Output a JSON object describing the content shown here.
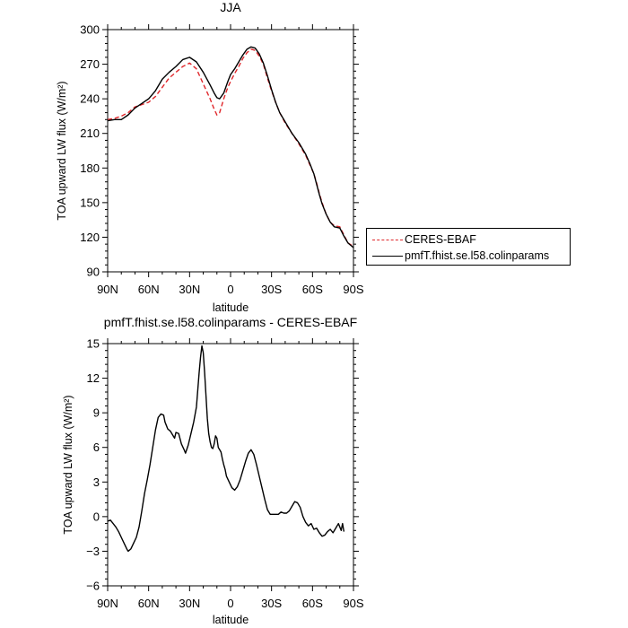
{
  "chart_data": [
    {
      "type": "line",
      "title": "JJA",
      "xlabel": "latitude",
      "ylabel": "TOA upward LW flux (W/m²)",
      "ylim": [
        90,
        300
      ],
      "xlim": [
        90,
        -90
      ],
      "yticks": [
        90,
        120,
        150,
        180,
        210,
        240,
        270,
        300
      ],
      "xticks": [
        90,
        60,
        30,
        0,
        -30,
        -60,
        -90
      ],
      "xtick_labels": [
        "90N",
        "60N",
        "30N",
        "0",
        "30S",
        "60S",
        "90S"
      ],
      "legend_position": "right",
      "series": [
        {
          "name": "CERES-EBAF",
          "color": "#e0262a",
          "dash": true,
          "points": [
            [
              90,
              222
            ],
            [
              85,
              223
            ],
            [
              80,
              225
            ],
            [
              75,
              228
            ],
            [
              70,
              233
            ],
            [
              65,
              235
            ],
            [
              60,
              237
            ],
            [
              55,
              242
            ],
            [
              50,
              250
            ],
            [
              45,
              258
            ],
            [
              40,
              263
            ],
            [
              35,
              268
            ],
            [
              30,
              271
            ],
            [
              25,
              266
            ],
            [
              20,
              253
            ],
            [
              15,
              240
            ],
            [
              12,
              231
            ],
            [
              10,
              226
            ],
            [
              8,
              228
            ],
            [
              5,
              240
            ],
            [
              2,
              250
            ],
            [
              0,
              255
            ],
            [
              -3,
              262
            ],
            [
              -6,
              268
            ],
            [
              -9,
              275
            ],
            [
              -12,
              280
            ],
            [
              -15,
              283
            ],
            [
              -18,
              282
            ],
            [
              -21,
              277
            ],
            [
              -24,
              270
            ],
            [
              -27,
              258
            ],
            [
              -30,
              247
            ],
            [
              -33,
              237
            ],
            [
              -36,
              228
            ],
            [
              -40,
              219
            ],
            [
              -45,
              210
            ],
            [
              -50,
              201
            ],
            [
              -55,
              191
            ],
            [
              -58,
              183
            ],
            [
              -61,
              175
            ],
            [
              -63,
              167
            ],
            [
              -65,
              158
            ],
            [
              -67,
              150
            ],
            [
              -70,
              140
            ],
            [
              -73,
              133
            ],
            [
              -76,
              130
            ],
            [
              -80,
              129
            ],
            [
              -83,
              122
            ],
            [
              -86,
              115
            ],
            [
              -90,
              112
            ]
          ]
        },
        {
          "name": "pmfT.fhist.se.l58.colinparams",
          "color": "#000000",
          "dash": false,
          "points": [
            [
              90,
              221
            ],
            [
              85,
              222
            ],
            [
              80,
              222
            ],
            [
              75,
              226
            ],
            [
              70,
              232
            ],
            [
              65,
              236
            ],
            [
              60,
              240
            ],
            [
              55,
              247
            ],
            [
              50,
              257
            ],
            [
              45,
              263
            ],
            [
              40,
              268
            ],
            [
              35,
              274
            ],
            [
              30,
              276
            ],
            [
              25,
              272
            ],
            [
              20,
              263
            ],
            [
              15,
              252
            ],
            [
              12,
              245
            ],
            [
              10,
              241
            ],
            [
              8,
              240
            ],
            [
              5,
              245
            ],
            [
              2,
              255
            ],
            [
              0,
              261
            ],
            [
              -3,
              266
            ],
            [
              -6,
              272
            ],
            [
              -9,
              278
            ],
            [
              -12,
              283
            ],
            [
              -15,
              285
            ],
            [
              -18,
              284
            ],
            [
              -21,
              279
            ],
            [
              -24,
              271
            ],
            [
              -27,
              260
            ],
            [
              -30,
              248
            ],
            [
              -33,
              237
            ],
            [
              -36,
              228
            ],
            [
              -40,
              220
            ],
            [
              -45,
              210
            ],
            [
              -50,
              202
            ],
            [
              -55,
              192
            ],
            [
              -58,
              184
            ],
            [
              -61,
              175
            ],
            [
              -63,
              166
            ],
            [
              -65,
              157
            ],
            [
              -67,
              149
            ],
            [
              -70,
              140
            ],
            [
              -73,
              133
            ],
            [
              -76,
              129
            ],
            [
              -80,
              128
            ],
            [
              -83,
              121
            ],
            [
              -86,
              115
            ],
            [
              -90,
              111
            ]
          ]
        }
      ]
    },
    {
      "type": "line",
      "title": "pmfT.fhist.se.l58.colinparams - CERES-EBAF",
      "xlabel": "latitude",
      "ylabel": "TOA upward LW flux (W/m²)",
      "ylim": [
        -6,
        15
      ],
      "xlim": [
        90,
        -90
      ],
      "yticks": [
        -6,
        -3,
        0,
        3,
        6,
        9,
        12,
        15
      ],
      "xticks": [
        90,
        60,
        30,
        0,
        -30,
        -60,
        -90
      ],
      "xtick_labels": [
        "90N",
        "60N",
        "30N",
        "0",
        "30S",
        "60S",
        "90S"
      ],
      "series": [
        {
          "color": "#000000",
          "dash": false,
          "points": [
            [
              90,
              -0.4
            ],
            [
              88,
              -0.3
            ],
            [
              86,
              -0.6
            ],
            [
              84,
              -0.9
            ],
            [
              82,
              -1.3
            ],
            [
              80,
              -1.8
            ],
            [
              78,
              -2.3
            ],
            [
              76,
              -2.8
            ],
            [
              75,
              -3.0
            ],
            [
              73,
              -2.8
            ],
            [
              71,
              -2.3
            ],
            [
              69,
              -1.8
            ],
            [
              67,
              -0.9
            ],
            [
              65,
              0.5
            ],
            [
              63,
              2.0
            ],
            [
              61,
              3.2
            ],
            [
              59,
              4.5
            ],
            [
              57,
              6.0
            ],
            [
              55,
              7.5
            ],
            [
              53,
              8.6
            ],
            [
              51,
              8.9
            ],
            [
              49,
              8.8
            ],
            [
              48,
              8.2
            ],
            [
              46,
              7.6
            ],
            [
              44,
              7.4
            ],
            [
              42,
              7.0
            ],
            [
              41,
              6.8
            ],
            [
              40,
              7.3
            ],
            [
              38,
              7.2
            ],
            [
              36,
              6.3
            ],
            [
              34,
              5.8
            ],
            [
              33,
              5.5
            ],
            [
              31,
              6.2
            ],
            [
              29,
              7.2
            ],
            [
              27,
              8.2
            ],
            [
              25,
              9.5
            ],
            [
              24,
              11.0
            ],
            [
              23,
              12.5
            ],
            [
              22,
              13.8
            ],
            [
              21,
              14.8
            ],
            [
              20,
              14.2
            ],
            [
              19,
              12.5
            ],
            [
              18,
              10.5
            ],
            [
              17,
              8.5
            ],
            [
              16,
              7.2
            ],
            [
              15,
              6.5
            ],
            [
              14,
              6.0
            ],
            [
              13,
              5.9
            ],
            [
              12,
              6.3
            ],
            [
              11,
              7.0
            ],
            [
              10,
              6.8
            ],
            [
              9,
              6.0
            ],
            [
              8,
              5.8
            ],
            [
              7,
              5.6
            ],
            [
              6,
              5.0
            ],
            [
              5,
              4.5
            ],
            [
              4,
              4.1
            ],
            [
              3,
              3.5
            ],
            [
              1,
              3.0
            ],
            [
              -1,
              2.5
            ],
            [
              -3,
              2.3
            ],
            [
              -5,
              2.6
            ],
            [
              -7,
              3.2
            ],
            [
              -9,
              4.0
            ],
            [
              -11,
              4.8
            ],
            [
              -13,
              5.5
            ],
            [
              -15,
              5.8
            ],
            [
              -17,
              5.4
            ],
            [
              -19,
              4.5
            ],
            [
              -21,
              3.5
            ],
            [
              -23,
              2.5
            ],
            [
              -25,
              1.5
            ],
            [
              -27,
              0.6
            ],
            [
              -29,
              0.2
            ],
            [
              -31,
              0.2
            ],
            [
              -33,
              0.2
            ],
            [
              -35,
              0.2
            ],
            [
              -37,
              0.4
            ],
            [
              -39,
              0.3
            ],
            [
              -41,
              0.3
            ],
            [
              -43,
              0.5
            ],
            [
              -45,
              0.9
            ],
            [
              -47,
              1.3
            ],
            [
              -49,
              1.2
            ],
            [
              -51,
              0.8
            ],
            [
              -53,
              0.0
            ],
            [
              -55,
              -0.5
            ],
            [
              -57,
              -0.8
            ],
            [
              -59,
              -0.6
            ],
            [
              -61,
              -1.1
            ],
            [
              -63,
              -1.0
            ],
            [
              -65,
              -1.4
            ],
            [
              -67,
              -1.7
            ],
            [
              -69,
              -1.6
            ],
            [
              -71,
              -1.3
            ],
            [
              -73,
              -1.1
            ],
            [
              -75,
              -1.4
            ],
            [
              -77,
              -1.0
            ],
            [
              -79,
              -0.6
            ],
            [
              -81,
              -1.2
            ],
            [
              -82,
              -0.6
            ],
            [
              -83,
              -1.3
            ]
          ]
        }
      ]
    }
  ]
}
